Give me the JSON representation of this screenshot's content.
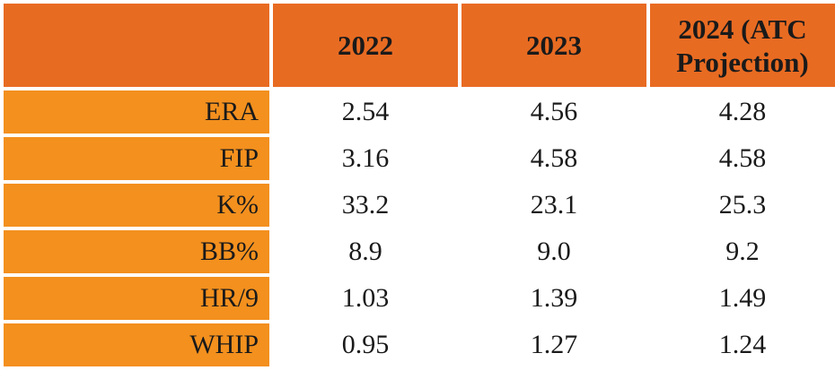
{
  "chart_data": {
    "type": "table",
    "columns": [
      "2022",
      "2023",
      "2024 (ATC Projection)"
    ],
    "rows": [
      {
        "label": "ERA",
        "values": [
          "2.54",
          "4.56",
          "4.28"
        ]
      },
      {
        "label": "FIP",
        "values": [
          "3.16",
          "4.58",
          "4.58"
        ]
      },
      {
        "label": "K%",
        "values": [
          "33.2",
          "23.1",
          "25.3"
        ]
      },
      {
        "label": "BB%",
        "values": [
          "8.9",
          "9.0",
          "9.2"
        ]
      },
      {
        "label": "HR/9",
        "values": [
          "1.03",
          "1.39",
          "1.49"
        ]
      },
      {
        "label": "WHIP",
        "values": [
          "0.95",
          "1.27",
          "1.24"
        ]
      }
    ]
  },
  "colors": {
    "header_bg": "#e86b22",
    "row_label_bg": "#f3901e",
    "cell_bg": "#ffffff",
    "text": "#1a1a1a"
  }
}
